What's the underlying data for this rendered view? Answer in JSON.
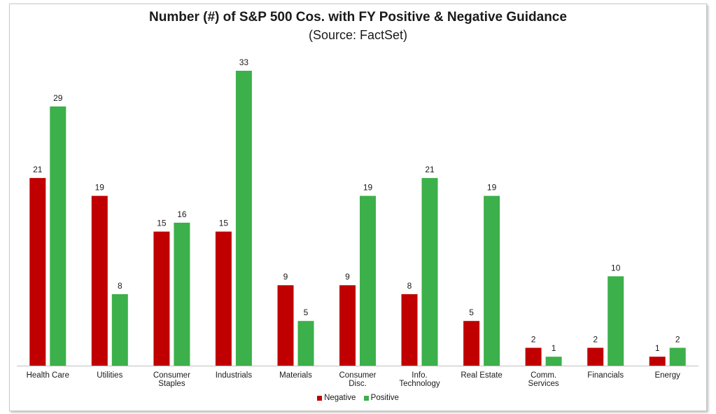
{
  "chart_data": {
    "type": "bar",
    "title": "Number (#) of S&P 500 Cos. with FY Positive & Negative Guidance",
    "subtitle": "(Source: FactSet)",
    "categories": [
      [
        "Health Care"
      ],
      [
        "Utilities"
      ],
      [
        "Consumer",
        "Staples"
      ],
      [
        "Industrials"
      ],
      [
        "Materials"
      ],
      [
        "Consumer",
        "Disc."
      ],
      [
        "Info.",
        "Technology"
      ],
      [
        "Real Estate"
      ],
      [
        "Comm.",
        "Services"
      ],
      [
        "Financials"
      ],
      [
        "Energy"
      ]
    ],
    "series": [
      {
        "name": "Negative",
        "color": "#c00000",
        "values": [
          21,
          19,
          15,
          15,
          9,
          9,
          8,
          5,
          2,
          2,
          1
        ]
      },
      {
        "name": "Positive",
        "color": "#3cb04a",
        "values": [
          29,
          8,
          16,
          33,
          5,
          19,
          21,
          19,
          1,
          10,
          2
        ]
      }
    ],
    "ylim": [
      0,
      33
    ],
    "grid": false,
    "legend_position": "bottom",
    "data_labels": true
  }
}
